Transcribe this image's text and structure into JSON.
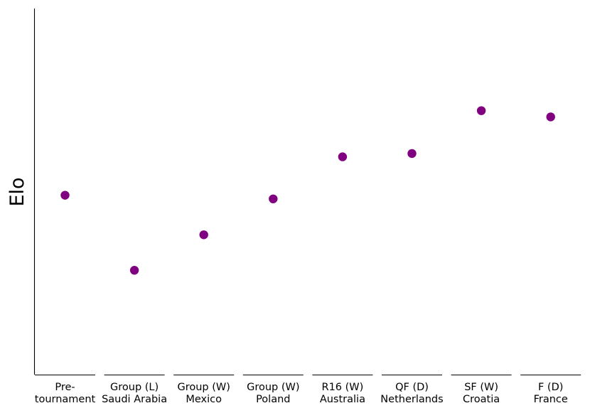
{
  "chart_data": {
    "type": "scatter",
    "ylabel": "Elo",
    "xlabel": "",
    "title": "",
    "categories": [
      [
        "Pre-",
        "tournament"
      ],
      [
        "Group (L)",
        "Saudi Arabia"
      ],
      [
        "Group (W)",
        "Mexico"
      ],
      [
        "Group (W)",
        "Poland"
      ],
      [
        "R16 (W)",
        "Australia"
      ],
      [
        "QF (D)",
        "Netherlands"
      ],
      [
        "SF (W)",
        "Croatia"
      ],
      [
        "F (D)",
        "France"
      ]
    ],
    "values": [
      0.49,
      0.285,
      0.382,
      0.48,
      0.595,
      0.604,
      0.721,
      0.704
    ],
    "ylim": [
      0,
      1
    ],
    "y_ticks_shown": false,
    "grid": false,
    "marker_color": "#800080"
  }
}
